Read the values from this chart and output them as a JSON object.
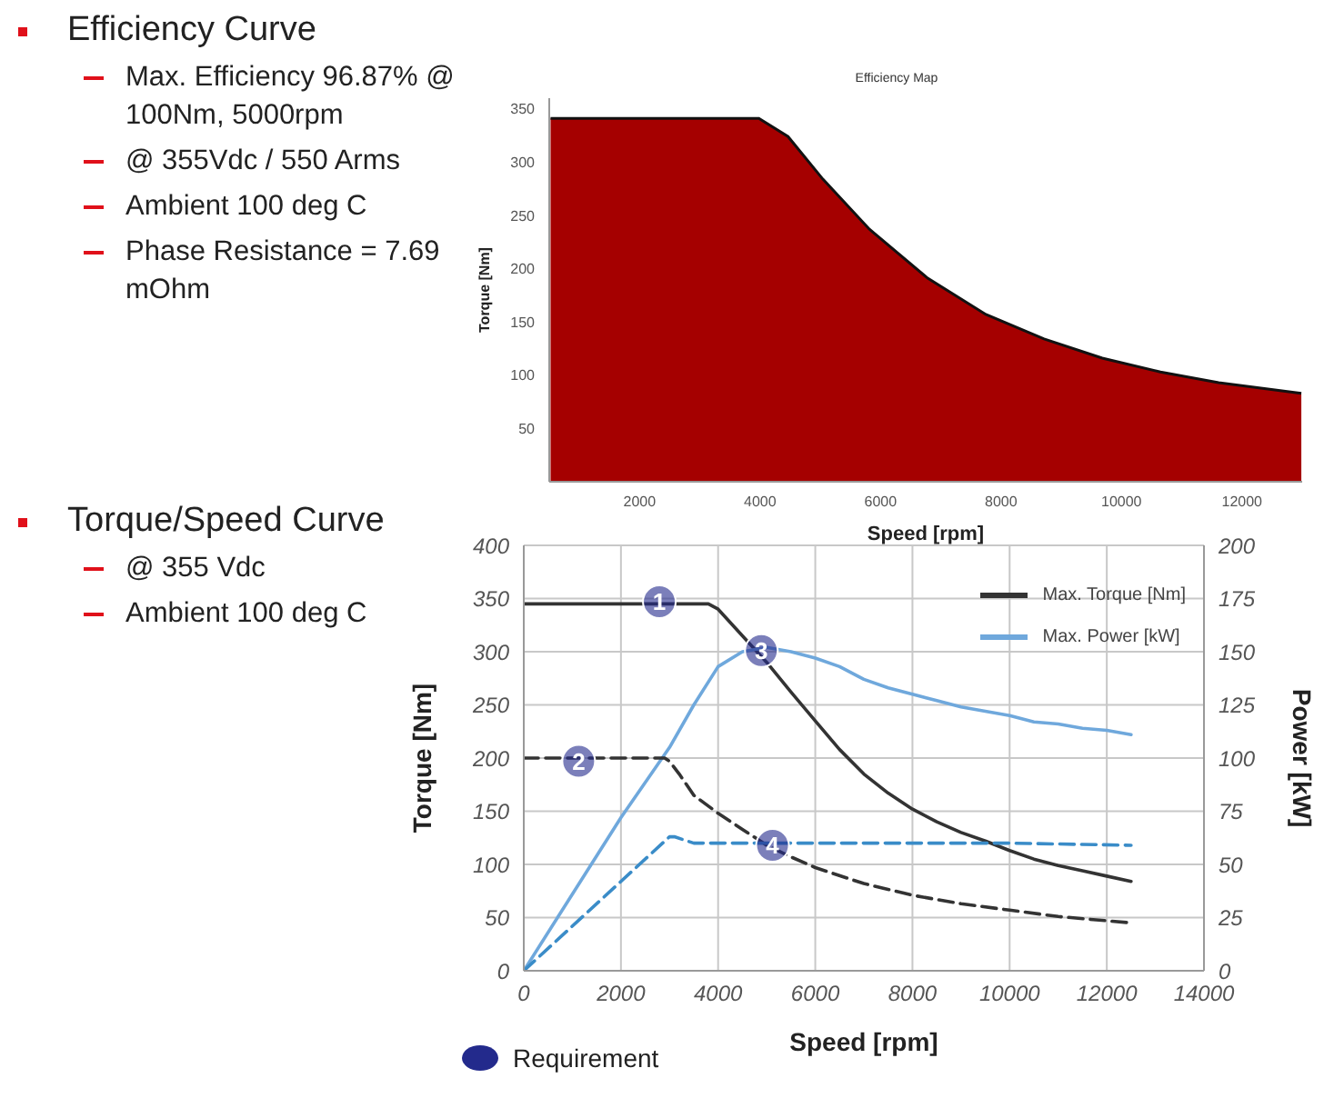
{
  "chart_data": [
    {
      "type": "area",
      "title": "Efficiency Map",
      "xlabel": "Speed [rpm]",
      "ylabel": "Torque [Nm]",
      "color": "#a50000",
      "x": [
        522,
        3980,
        4464,
        5043,
        5816,
        6783,
        7749,
        8715,
        9681,
        10647,
        11614,
        12986
      ],
      "values": [
        341,
        341,
        324,
        284,
        237,
        191,
        157,
        134,
        116,
        103,
        93,
        83
      ],
      "xlim": [
        500,
        13000
      ],
      "xticks": [
        2000,
        4000,
        6000,
        8000,
        10000,
        12000
      ],
      "ylim": [
        0,
        360
      ],
      "yticks": [
        50,
        100,
        150,
        200,
        250,
        300,
        350
      ],
      "grid": false,
      "annotations": [
        "Efficiency Curve",
        "Max. Efficiency 96.87% @ 100Nm, 5000rpm",
        "@ 355Vdc / 550 Arms",
        "Ambient 100 deg C",
        "Phase Resistance = 7.69 mOhm"
      ]
    },
    {
      "type": "line",
      "xlabel": "Speed [rpm]",
      "ylabel": "Torque [Nm]",
      "y2label": "Power [kW]",
      "marker": "none",
      "grid": true,
      "legend": "top right",
      "xlim": [
        0,
        14000
      ],
      "xticks": [
        0,
        2000,
        4000,
        6000,
        8000,
        10000,
        12000,
        14000
      ],
      "ylim": [
        0,
        400
      ],
      "yticks": [
        0,
        50,
        100,
        150,
        200,
        250,
        300,
        350,
        400
      ],
      "y2lim": [
        0,
        200
      ],
      "y2ticks": [
        0,
        25,
        50,
        75,
        100,
        125,
        150,
        175,
        200
      ],
      "series": [
        {
          "name": "Max. Torque [Nm]",
          "color": "#333333",
          "line_style": "solid",
          "x": [
            0,
            3800,
            4000,
            4500,
            5000,
            5500,
            6000,
            6500,
            7000,
            7500,
            8000,
            8500,
            9000,
            9500,
            10000,
            10500,
            11000,
            11500,
            12000,
            12500
          ],
          "values": [
            345,
            345,
            340,
            315,
            290,
            262,
            235,
            208,
            185,
            167,
            152,
            140,
            130,
            122,
            113,
            105,
            99,
            94,
            89,
            84
          ]
        },
        {
          "name": "Max. Power [kW]",
          "color": "#6fa8dc",
          "line_style": "solid",
          "axis": "y2",
          "x": [
            0,
            2000,
            3000,
            3500,
            4000,
            4500,
            5000,
            5500,
            6000,
            6500,
            7000,
            7500,
            8000,
            8500,
            9000,
            9500,
            10000,
            10500,
            11000,
            11500,
            12000,
            12500
          ],
          "values": [
            0,
            72,
            105,
            125,
            143,
            150,
            152,
            150,
            147,
            143,
            137,
            133,
            130,
            127,
            124,
            122,
            120,
            117,
            116,
            114,
            113,
            111
          ]
        },
        {
          "color": "#333333",
          "line_style": "dashed",
          "x": [
            0,
            2900,
            3000,
            3200,
            3500,
            4000,
            4500,
            5000,
            5500,
            6000,
            7000,
            8000,
            9000,
            10000,
            11000,
            12000,
            12500
          ],
          "values": [
            200,
            200,
            197,
            185,
            165,
            148,
            133,
            118,
            107,
            97,
            82,
            71,
            63,
            57,
            51,
            47,
            45
          ]
        },
        {
          "color": "#3a8cc8",
          "line_style": "dashed",
          "axis": "y2",
          "x": [
            0,
            3000,
            3100,
            3500,
            4000,
            6000,
            8000,
            10000,
            12500
          ],
          "values": [
            0,
            63,
            63,
            60,
            60,
            60,
            60,
            60,
            59
          ]
        }
      ],
      "annotations": [
        "Torque/Speed Curve",
        "@ 355 Vdc",
        "Ambient 100 deg C",
        "Requirement",
        {
          "text": "1",
          "x": 2790,
          "y": 347
        },
        {
          "text": "2",
          "x": 1130,
          "y": 197
        },
        {
          "text": "3",
          "x": 4890,
          "y": 301
        },
        {
          "text": "4",
          "x": 5120,
          "y": 118
        }
      ]
    }
  ]
}
